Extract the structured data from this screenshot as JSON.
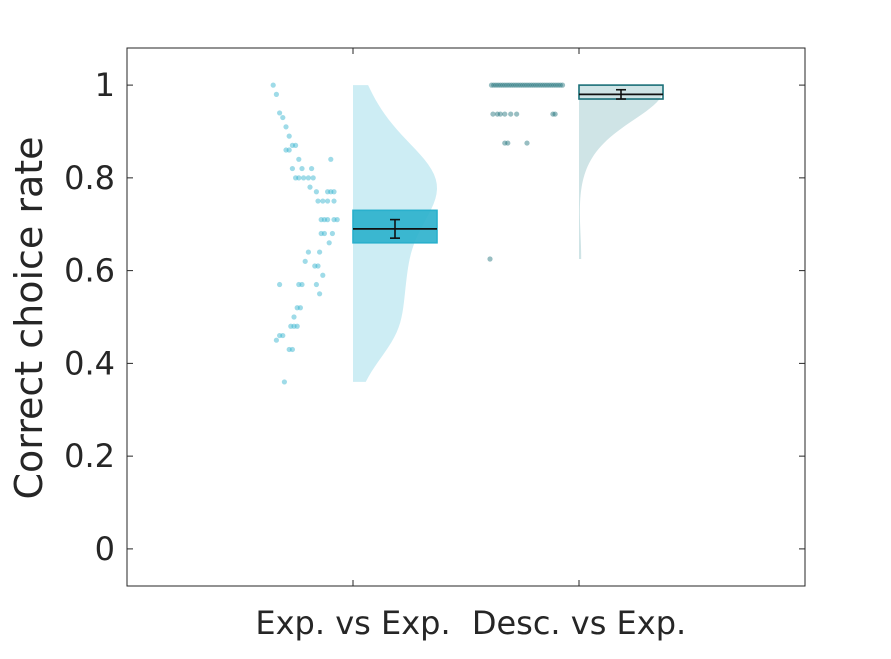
{
  "chart_data": {
    "type": "scatter",
    "title": "",
    "ylabel": "Correct choice rate",
    "xlabel": "",
    "ylim": [
      -0.08,
      1.08
    ],
    "yticks": [
      0,
      0.2,
      0.4,
      0.6,
      0.8,
      1
    ],
    "ytick_labels": [
      "0",
      "0.2",
      "0.4",
      "0.6",
      "0.8",
      "1"
    ],
    "grid": false,
    "groups": [
      {
        "label": "Exp. vs Exp.",
        "color": "#2ab0cc",
        "light_color": "#cdedf4",
        "points": [
          1.0,
          0.98,
          0.94,
          0.93,
          0.91,
          0.89,
          0.87,
          0.87,
          0.86,
          0.86,
          0.84,
          0.84,
          0.82,
          0.82,
          0.82,
          0.8,
          0.8,
          0.8,
          0.8,
          0.8,
          0.78,
          0.77,
          0.77,
          0.77,
          0.77,
          0.75,
          0.75,
          0.75,
          0.75,
          0.71,
          0.71,
          0.71,
          0.71,
          0.71,
          0.68,
          0.68,
          0.68,
          0.66,
          0.64,
          0.64,
          0.62,
          0.61,
          0.61,
          0.59,
          0.57,
          0.57,
          0.57,
          0.57,
          0.55,
          0.52,
          0.52,
          0.5,
          0.48,
          0.48,
          0.48,
          0.46,
          0.46,
          0.45,
          0.43,
          0.43,
          0.36
        ],
        "jitter": [
          0.14,
          0.18,
          0.22,
          0.26,
          0.3,
          0.34,
          0.38,
          0.42,
          0.3,
          0.34,
          0.46,
          0.86,
          0.38,
          0.5,
          0.62,
          0.42,
          0.46,
          0.52,
          0.58,
          0.64,
          0.6,
          0.68,
          0.82,
          0.86,
          0.9,
          0.7,
          0.76,
          0.82,
          0.9,
          0.74,
          0.78,
          0.82,
          0.9,
          0.94,
          0.74,
          0.78,
          0.88,
          0.84,
          0.58,
          0.72,
          0.54,
          0.66,
          0.7,
          0.76,
          0.22,
          0.46,
          0.5,
          0.68,
          0.72,
          0.44,
          0.48,
          0.4,
          0.36,
          0.4,
          0.44,
          0.22,
          0.26,
          0.18,
          0.34,
          0.38,
          0.28
        ],
        "mean": 0.69,
        "sem": 0.02,
        "box": [
          0.66,
          0.73
        ]
      },
      {
        "label": "Desc. vs Exp.",
        "color": "#1a6f78",
        "light_color": "#cfe4e6",
        "points": [
          1.0,
          1.0,
          1.0,
          1.0,
          1.0,
          1.0,
          1.0,
          1.0,
          1.0,
          1.0,
          1.0,
          1.0,
          1.0,
          1.0,
          1.0,
          1.0,
          1.0,
          1.0,
          1.0,
          1.0,
          1.0,
          1.0,
          1.0,
          1.0,
          1.0,
          1.0,
          1.0,
          1.0,
          1.0,
          1.0,
          1.0,
          1.0,
          1.0,
          0.9375,
          0.9375,
          0.9375,
          0.9375,
          0.9375,
          0.9375,
          0.9375,
          0.9375,
          0.875,
          0.875,
          0.875,
          0.625
        ],
        "jitter": [
          0.02,
          0.05,
          0.08,
          0.11,
          0.14,
          0.17,
          0.2,
          0.23,
          0.26,
          0.29,
          0.32,
          0.35,
          0.38,
          0.41,
          0.44,
          0.47,
          0.5,
          0.53,
          0.56,
          0.59,
          0.62,
          0.65,
          0.68,
          0.71,
          0.74,
          0.77,
          0.8,
          0.83,
          0.86,
          0.89,
          0.92,
          0.95,
          0.98,
          0.04,
          0.1,
          0.14,
          0.2,
          0.28,
          0.36,
          0.85,
          0.88,
          0.2,
          0.24,
          0.5,
          0.0
        ],
        "mean": 0.98,
        "sem": 0.01,
        "box": [
          0.97,
          1.0
        ]
      }
    ]
  }
}
